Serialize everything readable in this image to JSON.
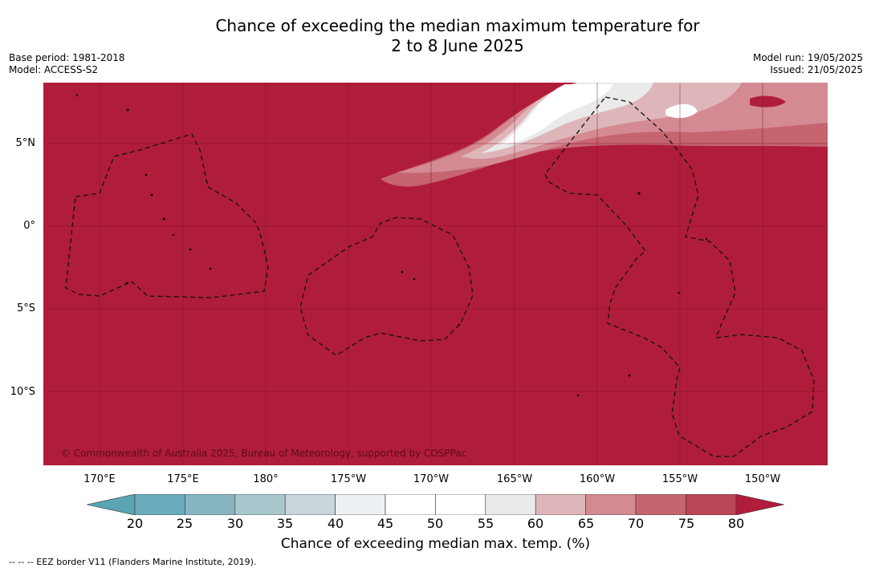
{
  "title_line1": "Chance of exceeding the median maximum temperature for",
  "title_line2": "2 to 8 June 2025",
  "meta_left": {
    "base_period": "Base period: 1981-2018",
    "model": "Model: ACCESS-S2"
  },
  "meta_right": {
    "model_run": "Model run: 19/05/2025",
    "issued": "Issued: 21/05/2025"
  },
  "lat_labels": [
    "5°N",
    "0°",
    "5°S",
    "10°S"
  ],
  "lon_labels": [
    "170°E",
    "175°E",
    "180°",
    "175°W",
    "170°W",
    "165°W",
    "160°W",
    "155°W",
    "150°W"
  ],
  "copyright": "© Commonwealth of Australia 2025, Bureau of Meteorology, supported by COSPPac",
  "colorbar": {
    "ticks": [
      "20",
      "25",
      "30",
      "35",
      "40",
      "45",
      "50",
      "55",
      "60",
      "65",
      "70",
      "75",
      "80"
    ],
    "colors": [
      "#6aacbd",
      "#87b5c2",
      "#a7c7cc",
      "#c8d6db",
      "#ecf0f2",
      "#ffffff",
      "#ffffff",
      "#eaeaea",
      "#deb6b9",
      "#d48a92",
      "#c66470",
      "#ba4655"
    ],
    "under_color": "#5aa4b3",
    "over_color": "#b01d3a",
    "label": "Chance of exceeding median max. temp. (%)"
  },
  "footnote": "--  --  -- EEZ border V11 (Flanders Marine Institute, 2019)."
}
